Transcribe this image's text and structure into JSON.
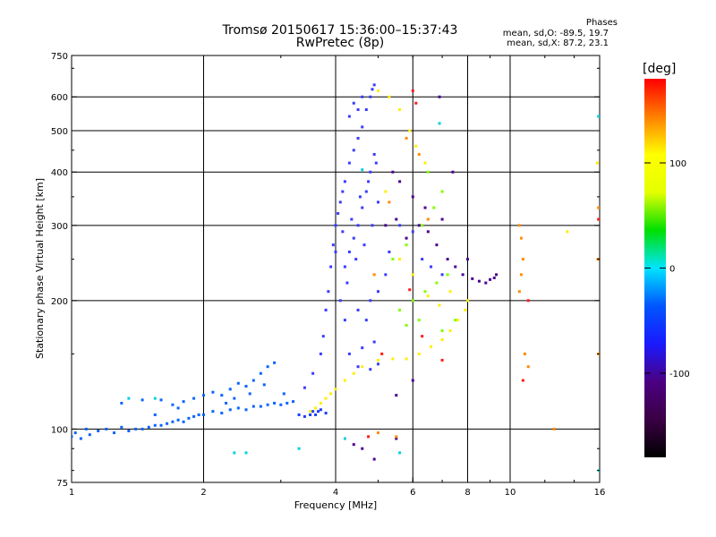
{
  "title": {
    "line1": "Tromsø 20150617 15:36:00–15:37:43",
    "line2": "RwPretec (8p)"
  },
  "phases": {
    "title": "Phases",
    "line1": "mean, sd,O: -89.5, 19.7",
    "line2": "mean, sd,X: 87.2, 23.1"
  },
  "colorbar": {
    "title": "[deg]",
    "ticks": [
      "100",
      "0",
      "-100"
    ],
    "tick_values": [
      100,
      0,
      -100
    ],
    "range": [
      -180,
      180
    ],
    "colors": [
      "#000000",
      "#3a0044",
      "#4b0082",
      "#1a1aff",
      "#0055ff",
      "#00e5ff",
      "#00e000",
      "#e5ff00",
      "#ffff00",
      "#ff7f00",
      "#ff0000"
    ]
  },
  "chart_data": {
    "type": "scatter",
    "xlabel": "Frequency [MHz]",
    "ylabel": "Stationary phase Virtual Height [km]",
    "x_scale": "log",
    "y_scale": "log",
    "xlim": [
      1,
      16
    ],
    "ylim": [
      75,
      750
    ],
    "x_ticks": [
      1,
      2,
      4,
      6,
      8,
      10,
      16
    ],
    "x_tick_labels": [
      "1",
      "2",
      "4",
      "6",
      "8",
      "10",
      "16"
    ],
    "x_gridlines": [
      2,
      4,
      6,
      8,
      10
    ],
    "y_ticks": [
      75,
      100,
      200,
      300,
      400,
      500,
      600,
      750
    ],
    "y_tick_labels": [
      "75",
      "100",
      "200",
      "300",
      "400",
      "500",
      "600",
      "750"
    ],
    "y_gridlines": [
      100,
      200,
      300,
      400,
      500,
      600
    ],
    "grid": true,
    "series": [
      {
        "color": "#0a64ff",
        "points": [
          [
            1.0,
            96
          ],
          [
            1.02,
            98
          ],
          [
            1.05,
            95
          ],
          [
            1.08,
            100
          ],
          [
            1.1,
            97
          ],
          [
            1.15,
            99
          ],
          [
            1.2,
            100
          ],
          [
            1.25,
            98
          ],
          [
            1.3,
            101
          ],
          [
            1.35,
            99
          ],
          [
            1.4,
            100
          ],
          [
            1.45,
            100
          ],
          [
            1.5,
            101
          ],
          [
            1.55,
            102
          ],
          [
            1.6,
            102
          ],
          [
            1.65,
            103
          ],
          [
            1.7,
            104
          ],
          [
            1.75,
            105
          ],
          [
            1.8,
            104
          ],
          [
            1.85,
            106
          ],
          [
            1.9,
            107
          ],
          [
            1.95,
            108
          ],
          [
            2.0,
            108
          ],
          [
            2.1,
            110
          ],
          [
            2.2,
            109
          ],
          [
            2.3,
            111
          ],
          [
            2.4,
            112
          ],
          [
            2.5,
            111
          ],
          [
            2.6,
            113
          ],
          [
            2.7,
            113
          ],
          [
            2.8,
            114
          ],
          [
            2.9,
            115
          ],
          [
            3.0,
            114
          ],
          [
            3.1,
            115
          ],
          [
            3.2,
            116
          ],
          [
            1.3,
            115
          ],
          [
            1.45,
            117
          ],
          [
            1.6,
            117
          ],
          [
            1.7,
            114
          ],
          [
            1.8,
            116
          ],
          [
            1.9,
            118
          ],
          [
            2.0,
            120
          ],
          [
            2.1,
            122
          ],
          [
            2.2,
            120
          ],
          [
            2.3,
            124
          ],
          [
            2.4,
            128
          ],
          [
            2.5,
            126
          ],
          [
            2.6,
            130
          ],
          [
            2.7,
            135
          ],
          [
            2.8,
            140
          ],
          [
            2.9,
            143
          ],
          [
            2.35,
            118
          ],
          [
            2.55,
            121
          ],
          [
            2.75,
            127
          ],
          [
            1.55,
            108
          ],
          [
            1.75,
            112
          ],
          [
            2.25,
            115
          ],
          [
            3.05,
            121
          ]
        ]
      },
      {
        "color": "#1a3cff",
        "points": [
          [
            3.3,
            108
          ],
          [
            3.4,
            107
          ],
          [
            3.5,
            108
          ],
          [
            3.55,
            110
          ],
          [
            3.6,
            108
          ],
          [
            3.65,
            110
          ],
          [
            3.7,
            111
          ],
          [
            3.8,
            109
          ]
        ]
      },
      {
        "color": "#3a3cff",
        "points": [
          [
            3.4,
            125
          ],
          [
            3.55,
            135
          ],
          [
            3.7,
            150
          ],
          [
            3.75,
            165
          ],
          [
            3.8,
            190
          ],
          [
            3.85,
            210
          ],
          [
            3.9,
            240
          ],
          [
            3.95,
            270
          ],
          [
            4.0,
            300
          ],
          [
            4.05,
            320
          ],
          [
            4.1,
            340
          ],
          [
            4.15,
            360
          ],
          [
            4.2,
            380
          ],
          [
            4.3,
            420
          ],
          [
            4.4,
            450
          ],
          [
            4.5,
            480
          ],
          [
            4.6,
            510
          ],
          [
            4.7,
            560
          ],
          [
            4.8,
            600
          ],
          [
            4.85,
            625
          ],
          [
            4.9,
            640
          ],
          [
            4.2,
            240
          ],
          [
            4.3,
            260
          ],
          [
            4.4,
            280
          ],
          [
            4.5,
            300
          ],
          [
            4.6,
            330
          ],
          [
            4.7,
            360
          ],
          [
            4.8,
            400
          ],
          [
            4.9,
            440
          ],
          [
            4.1,
            200
          ],
          [
            4.25,
            220
          ],
          [
            4.45,
            250
          ],
          [
            4.65,
            270
          ],
          [
            4.85,
            300
          ],
          [
            5.0,
            340
          ],
          [
            4.0,
            260
          ],
          [
            4.15,
            290
          ],
          [
            4.35,
            310
          ],
          [
            4.55,
            350
          ],
          [
            4.75,
            380
          ],
          [
            4.95,
            420
          ],
          [
            4.6,
            600
          ],
          [
            4.4,
            580
          ],
          [
            4.3,
            540
          ],
          [
            4.5,
            560
          ],
          [
            4.2,
            180
          ],
          [
            4.5,
            190
          ],
          [
            4.8,
            200
          ],
          [
            5.0,
            210
          ],
          [
            5.2,
            230
          ],
          [
            4.3,
            150
          ],
          [
            4.6,
            155
          ],
          [
            4.9,
            160
          ],
          [
            4.5,
            140
          ],
          [
            4.8,
            138
          ],
          [
            5.0,
            142
          ],
          [
            4.7,
            180
          ],
          [
            5.3,
            260
          ],
          [
            5.6,
            300
          ],
          [
            6.0,
            290
          ],
          [
            6.3,
            250
          ],
          [
            6.6,
            240
          ],
          [
            7.0,
            230
          ]
        ]
      },
      {
        "color": "#4b0090",
        "points": [
          [
            5.2,
            300
          ],
          [
            5.5,
            310
          ],
          [
            5.8,
            280
          ],
          [
            6.2,
            300
          ],
          [
            6.5,
            290
          ],
          [
            6.8,
            270
          ],
          [
            7.2,
            250
          ],
          [
            7.5,
            240
          ],
          [
            7.8,
            230
          ],
          [
            8.2,
            225
          ],
          [
            8.5,
            222
          ],
          [
            8.8,
            220
          ],
          [
            9.0,
            224
          ],
          [
            9.2,
            226
          ],
          [
            9.3,
            230
          ],
          [
            5.4,
            400
          ],
          [
            5.6,
            380
          ],
          [
            6.0,
            350
          ],
          [
            6.4,
            330
          ],
          [
            7.0,
            310
          ],
          [
            6.9,
            600
          ],
          [
            5.5,
            120
          ],
          [
            6.0,
            130
          ],
          [
            7.4,
            400
          ],
          [
            8.0,
            250
          ],
          [
            4.4,
            92
          ],
          [
            4.6,
            90
          ],
          [
            4.9,
            85
          ],
          [
            5.5,
            95
          ]
        ]
      },
      {
        "color": "#00d0e0",
        "points": [
          [
            1.35,
            118
          ],
          [
            1.55,
            118
          ],
          [
            2.35,
            88
          ],
          [
            2.5,
            88
          ],
          [
            4.2,
            95
          ],
          [
            5.6,
            88
          ],
          [
            6.9,
            520
          ],
          [
            15.9,
            540
          ],
          [
            15.95,
            80
          ],
          [
            3.3,
            90
          ],
          [
            4.6,
            405
          ]
        ]
      },
      {
        "color": "#7fff00",
        "points": [
          [
            5.6,
            190
          ],
          [
            6.0,
            200
          ],
          [
            6.4,
            210
          ],
          [
            6.8,
            220
          ],
          [
            7.2,
            230
          ],
          [
            5.8,
            175
          ],
          [
            6.2,
            180
          ],
          [
            7.0,
            170
          ],
          [
            7.5,
            180
          ],
          [
            5.4,
            250
          ],
          [
            5.8,
            270
          ],
          [
            6.3,
            300
          ],
          [
            6.7,
            330
          ],
          [
            7.0,
            360
          ],
          [
            6.5,
            400
          ]
        ]
      },
      {
        "color": "#ffee00",
        "points": [
          [
            3.5,
            110
          ],
          [
            3.6,
            112
          ],
          [
            3.7,
            115
          ],
          [
            3.8,
            118
          ],
          [
            3.9,
            121
          ],
          [
            4.0,
            124
          ],
          [
            4.2,
            130
          ],
          [
            4.4,
            135
          ],
          [
            4.6,
            140
          ],
          [
            5.0,
            145
          ],
          [
            5.4,
            146
          ],
          [
            5.8,
            146
          ],
          [
            6.2,
            150
          ],
          [
            6.6,
            156
          ],
          [
            7.0,
            162
          ],
          [
            7.3,
            170
          ],
          [
            7.6,
            180
          ],
          [
            7.9,
            190
          ],
          [
            8.0,
            200
          ],
          [
            5.0,
            620
          ],
          [
            5.3,
            600
          ],
          [
            5.6,
            560
          ],
          [
            5.9,
            500
          ],
          [
            6.1,
            460
          ],
          [
            6.4,
            420
          ],
          [
            5.2,
            360
          ],
          [
            5.6,
            250
          ],
          [
            6.0,
            230
          ],
          [
            6.5,
            205
          ],
          [
            6.9,
            195
          ],
          [
            7.3,
            210
          ],
          [
            15.8,
            420
          ],
          [
            13.5,
            290
          ]
        ]
      },
      {
        "color": "#ff8c00",
        "points": [
          [
            10.5,
            300
          ],
          [
            10.6,
            280
          ],
          [
            10.7,
            250
          ],
          [
            10.6,
            230
          ],
          [
            10.5,
            210
          ],
          [
            10.8,
            150
          ],
          [
            11.0,
            140
          ],
          [
            12.6,
            100
          ],
          [
            5.0,
            98
          ],
          [
            5.5,
            96
          ],
          [
            5.8,
            480
          ],
          [
            6.2,
            440
          ],
          [
            15.9,
            330
          ],
          [
            15.85,
            250
          ],
          [
            15.9,
            150
          ],
          [
            6.5,
            310
          ],
          [
            5.3,
            340
          ],
          [
            4.9,
            230
          ]
        ]
      },
      {
        "color": "#ff1a1a",
        "points": [
          [
            6.0,
            620
          ],
          [
            6.1,
            580
          ],
          [
            10.7,
            130
          ],
          [
            6.3,
            165
          ],
          [
            7.0,
            145
          ],
          [
            15.9,
            310
          ],
          [
            11.0,
            200
          ],
          [
            5.1,
            150
          ],
          [
            4.75,
            96
          ],
          [
            5.9,
            212
          ]
        ]
      }
    ]
  }
}
